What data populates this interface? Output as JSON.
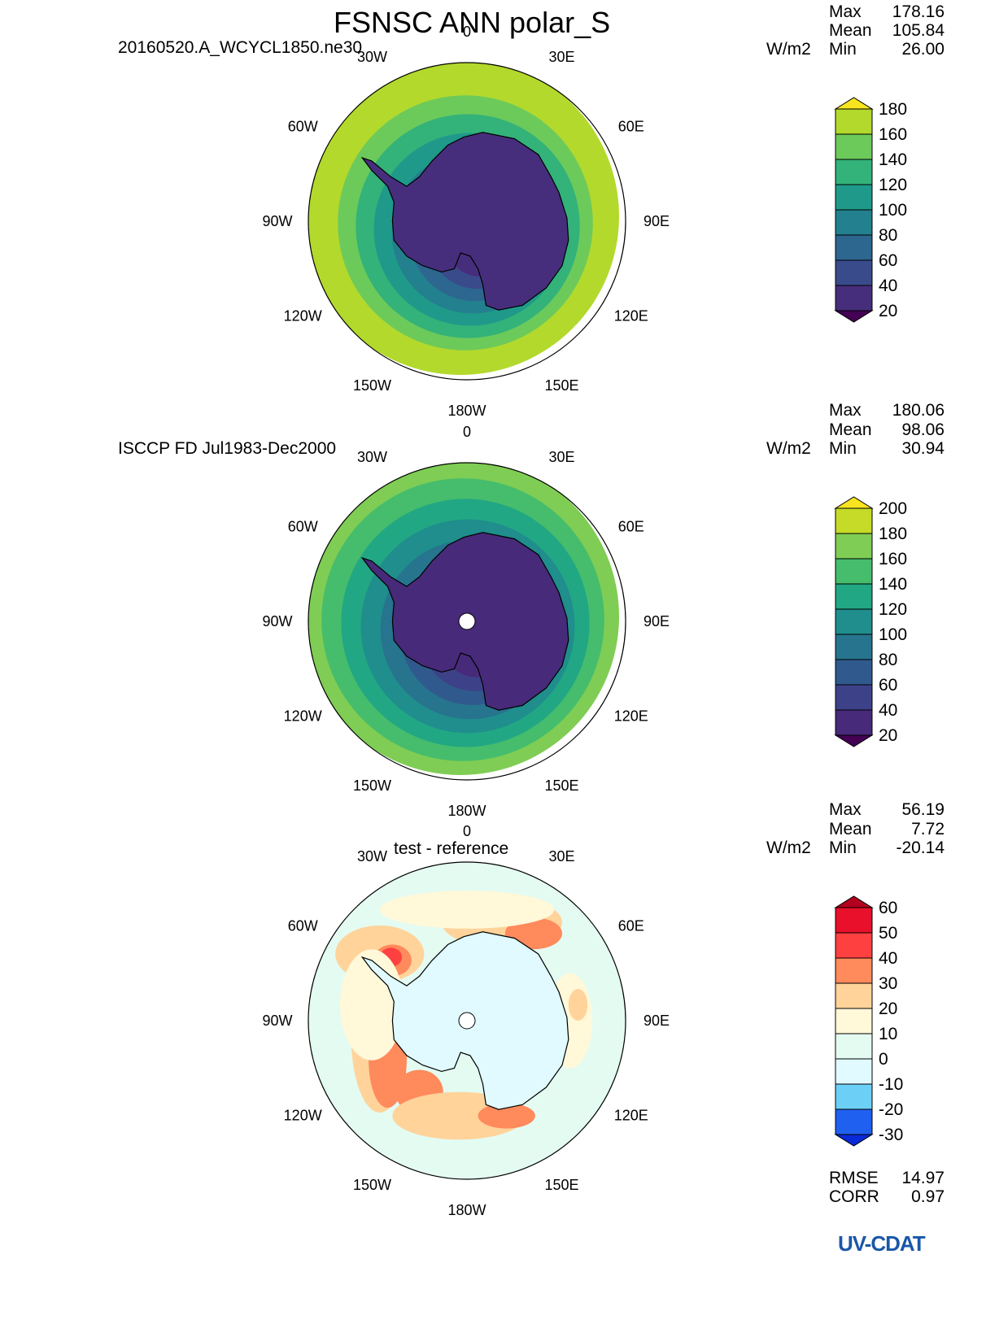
{
  "page": {
    "title": "FSNSC ANN polar_S",
    "logo": "UV-CDAT"
  },
  "panels": [
    {
      "name": "test",
      "label_left": "20160520.A_WCYCL1850.ne30",
      "label_center": "",
      "units": "W/m2",
      "stats": {
        "max_label": "Max",
        "mean_label": "Mean",
        "min_label": "Min",
        "max": "178.16",
        "mean": "105.84",
        "min": "26.00"
      },
      "colorbar": {
        "levels": [
          "180",
          "160",
          "140",
          "120",
          "100",
          "80",
          "60",
          "40",
          "20"
        ],
        "colors": [
          "#F9E51F",
          "#B3D92D",
          "#6CCA5A",
          "#33B27A",
          "#1F9A8A",
          "#23808E",
          "#2D668F",
          "#3A4B8C",
          "#472E7C",
          "#440154"
        ]
      },
      "rings": [
        "#B3D92D",
        "#B3D92D",
        "#6CCA5A",
        "#33B27A",
        "#1F9A8A",
        "#23808E",
        "#2D668F",
        "#3A4B8C",
        "#472E7C"
      ],
      "land_color": "#472E7C",
      "pole_hole": false
    },
    {
      "name": "reference",
      "label_left": "ISCCP FD Jul1983-Dec2000",
      "label_center": "",
      "units": "W/m2",
      "stats": {
        "max_label": "Max",
        "mean_label": "Mean",
        "min_label": "Min",
        "max": "180.06",
        "mean": "98.06",
        "min": "30.94"
      },
      "colorbar": {
        "levels": [
          "200",
          "180",
          "160",
          "140",
          "120",
          "100",
          "80",
          "60",
          "40",
          "20"
        ],
        "colors": [
          "#F9E51F",
          "#C5DB27",
          "#7FCD54",
          "#45BD6C",
          "#22A784",
          "#1F8E8C",
          "#27748E",
          "#305A8D",
          "#3D4288",
          "#472A7A",
          "#440154"
        ]
      },
      "rings": [
        "#7FCD54",
        "#45BD6C",
        "#22A784",
        "#1F8E8C",
        "#27748E",
        "#305A8D",
        "#3D4288",
        "#472A7A"
      ],
      "land_color": "#472A7A",
      "pole_hole": true
    },
    {
      "name": "difference",
      "label_left": "",
      "label_center": "test - reference",
      "units": "W/m2",
      "stats": {
        "max_label": "Max",
        "mean_label": "Mean",
        "min_label": "Min",
        "max": "56.19",
        "mean": "7.72",
        "min": "-20.14"
      },
      "colorbar": {
        "levels": [
          "60",
          "50",
          "40",
          "30",
          "20",
          "10",
          "0",
          "-10",
          "-20",
          "-30"
        ],
        "colors": [
          "#B2001E",
          "#E8102A",
          "#FF4040",
          "#FF8A5C",
          "#FFD39A",
          "#FFF8D9",
          "#E4FBF2",
          "#E0FAFF",
          "#6CD0F6",
          "#2060F0",
          "#0A2AD8"
        ]
      },
      "rings": [],
      "land_color": "#E0FAFF",
      "pole_hole": true,
      "rmse_label": "RMSE",
      "rmse": "14.97",
      "corr_label": "CORR",
      "corr": "0.97"
    }
  ],
  "longitude_labels": [
    "0",
    "30E",
    "60E",
    "90E",
    "120E",
    "150E",
    "180W",
    "150W",
    "120W",
    "90W",
    "60W",
    "30W"
  ]
}
